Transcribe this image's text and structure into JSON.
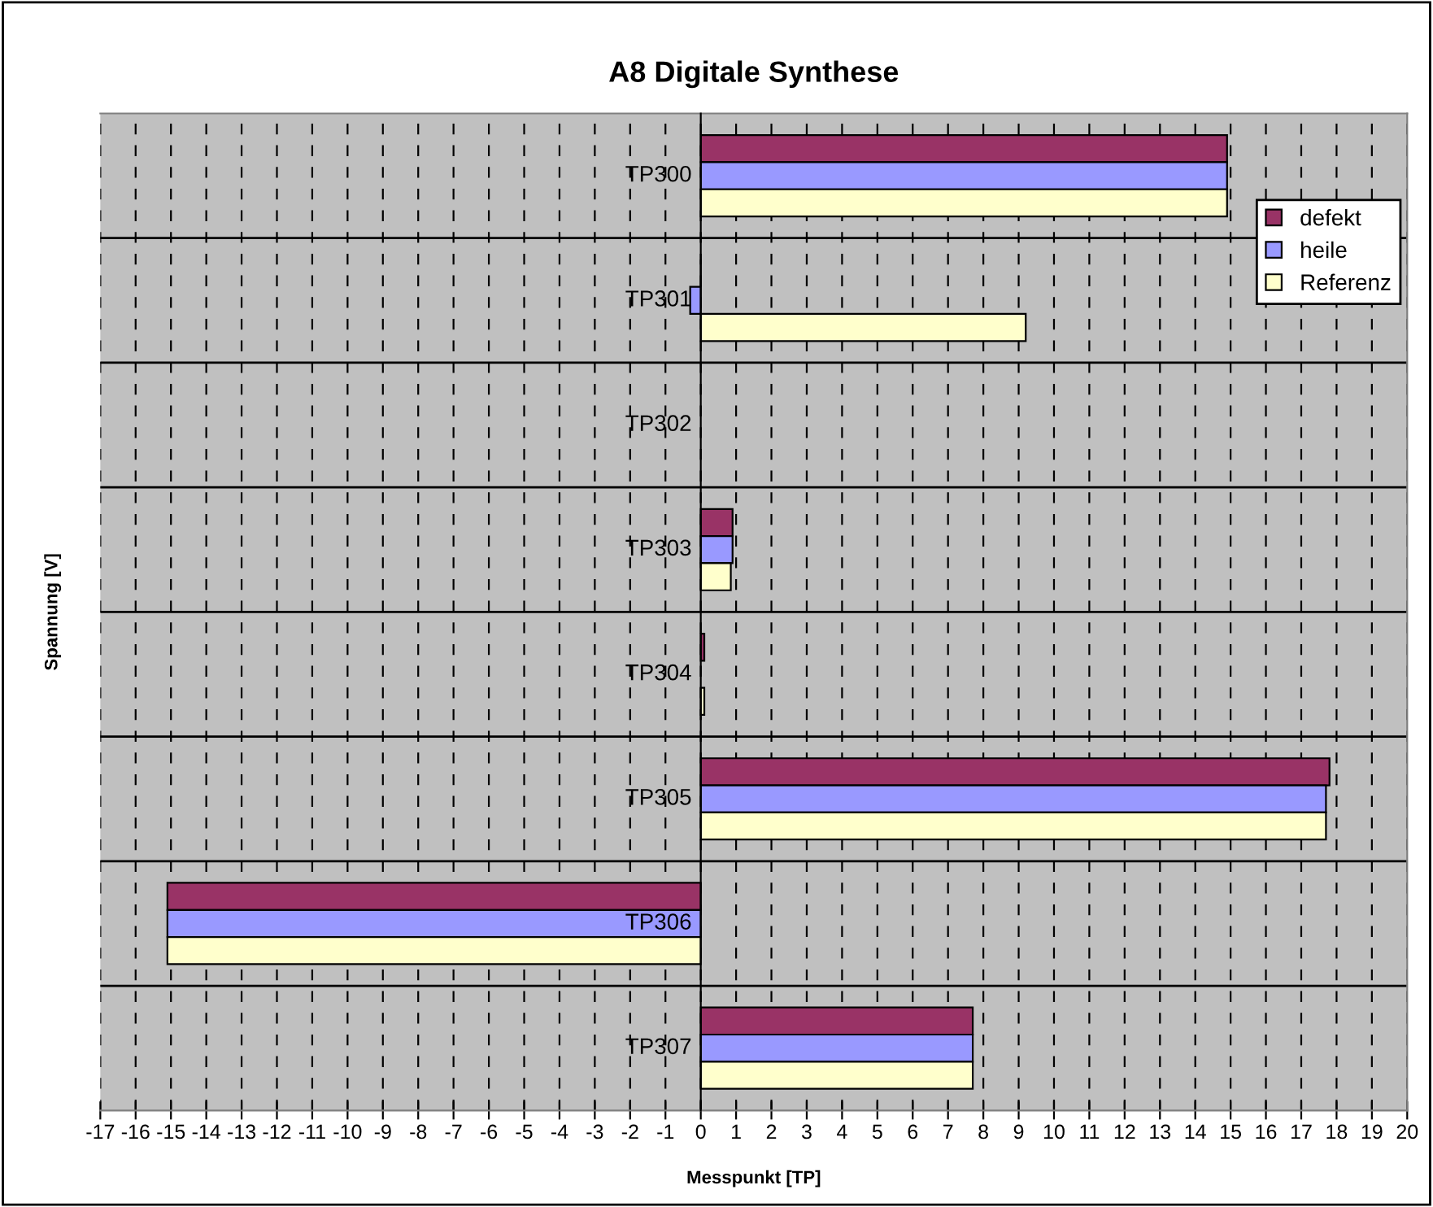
{
  "chart_data": {
    "type": "bar",
    "orientation": "horizontal",
    "title": "A8 Digitale Synthese",
    "xlabel": "Messpunkt [TP]",
    "ylabel": "Spannung [V]",
    "categories": [
      "TP300",
      "TP301",
      "TP302",
      "TP303",
      "TP304",
      "TP305",
      "TP306",
      "TP307"
    ],
    "series": [
      {
        "name": "defekt",
        "color": "#993366",
        "values": [
          14.9,
          0,
          null,
          0.9,
          0.1,
          17.8,
          -15.1,
          7.7
        ]
      },
      {
        "name": "heile",
        "color": "#9999ff",
        "values": [
          14.9,
          -0.3,
          null,
          0.9,
          null,
          17.7,
          -15.1,
          7.7
        ]
      },
      {
        "name": "Referenz",
        "color": "#ffffcc",
        "values": [
          14.9,
          9.2,
          null,
          0.85,
          0.1,
          17.7,
          -15.1,
          7.7
        ]
      }
    ],
    "xlim": [
      -17,
      20
    ],
    "xticks": [
      -17,
      -16,
      -15,
      -14,
      -13,
      -12,
      -11,
      -10,
      -9,
      -8,
      -7,
      -6,
      -5,
      -4,
      -3,
      -2,
      -1,
      0,
      1,
      2,
      3,
      4,
      5,
      6,
      7,
      8,
      9,
      10,
      11,
      12,
      13,
      14,
      15,
      16,
      17,
      18,
      19,
      20
    ],
    "grid": "x",
    "legend": "top right"
  }
}
